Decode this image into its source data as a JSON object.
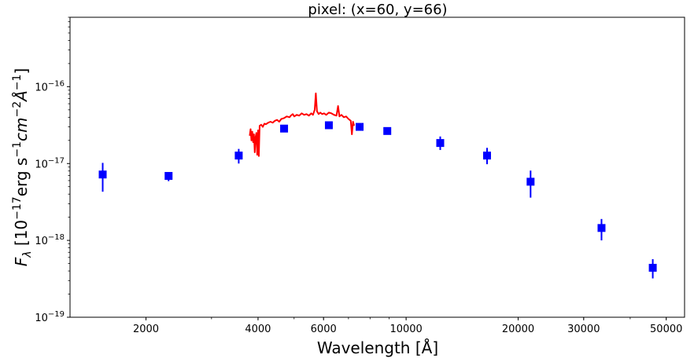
{
  "chart_data": {
    "type": "scatter",
    "title": "pixel: (x=60, y=66)",
    "xlabel": "Wavelength [Å]",
    "ylabel_parts": {
      "symbol": "F",
      "subscript": "λ",
      "open": " [10",
      "exp1": "−17",
      "unit_a": "erg s",
      "exp2": "−1",
      "unit_b": "cm",
      "exp3": "−2",
      "unit_c": "Å",
      "exp4": "−1",
      "close": "]"
    },
    "x_scale": "log",
    "y_scale": "log",
    "xlim": [
      1250,
      56000
    ],
    "ylim": [
      1e-19,
      8e-16
    ],
    "x_ticks": [
      {
        "value": 2000,
        "label": "2000"
      },
      {
        "value": 4000,
        "label": "4000"
      },
      {
        "value": 6000,
        "label": "6000"
      },
      {
        "value": 10000,
        "label": "10000"
      },
      {
        "value": 20000,
        "label": "20000"
      },
      {
        "value": 30000,
        "label": "30000"
      },
      {
        "value": 50000,
        "label": "50000"
      }
    ],
    "y_ticks": [
      {
        "value": 1e-19,
        "base": "10",
        "exp": "−19"
      },
      {
        "value": 1e-18,
        "base": "10",
        "exp": "−18"
      },
      {
        "value": 1e-17,
        "base": "10",
        "exp": "−17"
      },
      {
        "value": 1e-16,
        "base": "10",
        "exp": "−16"
      }
    ],
    "grid": false,
    "photometry": {
      "color": "#0000ff",
      "marker": "square",
      "points": [
        {
          "x": 1530,
          "y": 7.2e-18,
          "ylo": 4.3e-18,
          "yhi": 1.02e-17
        },
        {
          "x": 2300,
          "y": 6.9e-18,
          "ylo": 5.9e-18,
          "yhi": 7.7e-18
        },
        {
          "x": 3550,
          "y": 1.27e-17,
          "ylo": 1e-17,
          "yhi": 1.55e-17
        },
        {
          "x": 4700,
          "y": 2.85e-17,
          "ylo": 2.6e-17,
          "yhi": 3.1e-17
        },
        {
          "x": 6200,
          "y": 3.15e-17,
          "ylo": 2.9e-17,
          "yhi": 3.4e-17
        },
        {
          "x": 7500,
          "y": 3e-17,
          "ylo": 2.75e-17,
          "yhi": 3.25e-17
        },
        {
          "x": 8900,
          "y": 2.65e-17,
          "ylo": 2.45e-17,
          "yhi": 2.85e-17
        },
        {
          "x": 12350,
          "y": 1.85e-17,
          "ylo": 1.5e-17,
          "yhi": 2.25e-17
        },
        {
          "x": 16500,
          "y": 1.27e-17,
          "ylo": 9.8e-18,
          "yhi": 1.6e-17
        },
        {
          "x": 21600,
          "y": 5.8e-18,
          "ylo": 3.6e-18,
          "yhi": 8.1e-18
        },
        {
          "x": 33500,
          "y": 1.45e-18,
          "ylo": 1e-18,
          "yhi": 1.9e-18
        },
        {
          "x": 46000,
          "y": 4.4e-19,
          "ylo": 3.2e-19,
          "yhi": 5.7e-19
        }
      ]
    },
    "spectrum": {
      "color": "#ff0000",
      "points": [
        [
          3800,
          2.3e-17
        ],
        [
          3820,
          2.8e-17
        ],
        [
          3840,
          2e-17
        ],
        [
          3860,
          2.6e-17
        ],
        [
          3880,
          1.9e-17
        ],
        [
          3900,
          2.4e-17
        ],
        [
          3920,
          1.4e-17
        ],
        [
          3940,
          2.2e-17
        ],
        [
          3960,
          2.5e-17
        ],
        [
          3980,
          1.3e-17
        ],
        [
          4000,
          2.7e-17
        ],
        [
          4020,
          1.25e-17
        ],
        [
          4040,
          3.1e-17
        ],
        [
          4080,
          3.2e-17
        ],
        [
          4120,
          3e-17
        ],
        [
          4160,
          3.3e-17
        ],
        [
          4200,
          3.25e-17
        ],
        [
          4260,
          3.4e-17
        ],
        [
          4320,
          3.5e-17
        ],
        [
          4380,
          3.4e-17
        ],
        [
          4440,
          3.6e-17
        ],
        [
          4500,
          3.7e-17
        ],
        [
          4560,
          3.5e-17
        ],
        [
          4620,
          3.8e-17
        ],
        [
          4700,
          3.9e-17
        ],
        [
          4780,
          4.1e-17
        ],
        [
          4861,
          4e-17
        ],
        [
          4900,
          4.2e-17
        ],
        [
          4959,
          4.4e-17
        ],
        [
          5007,
          4.1e-17
        ],
        [
          5080,
          4.3e-17
        ],
        [
          5160,
          4.2e-17
        ],
        [
          5240,
          4.5e-17
        ],
        [
          5320,
          4.3e-17
        ],
        [
          5400,
          4.4e-17
        ],
        [
          5480,
          4.2e-17
        ],
        [
          5560,
          4.5e-17
        ],
        [
          5620,
          4.3e-17
        ],
        [
          5680,
          5e-17
        ],
        [
          5720,
          8.2e-17
        ],
        [
          5760,
          4.8e-17
        ],
        [
          5820,
          4.4e-17
        ],
        [
          5880,
          4.6e-17
        ],
        [
          5950,
          4.4e-17
        ],
        [
          6020,
          4.5e-17
        ],
        [
          6100,
          4.3e-17
        ],
        [
          6200,
          4.6e-17
        ],
        [
          6300,
          4.5e-17
        ],
        [
          6400,
          4.3e-17
        ],
        [
          6500,
          4.2e-17
        ],
        [
          6563,
          5.6e-17
        ],
        [
          6620,
          4.1e-17
        ],
        [
          6700,
          4.3e-17
        ],
        [
          6800,
          4e-17
        ],
        [
          6900,
          4.1e-17
        ],
        [
          7000,
          3.8e-17
        ],
        [
          7100,
          3.6e-17
        ],
        [
          7150,
          2.4e-17
        ],
        [
          7200,
          3.5e-17
        ],
        [
          7250,
          3.1e-17
        ]
      ]
    }
  }
}
